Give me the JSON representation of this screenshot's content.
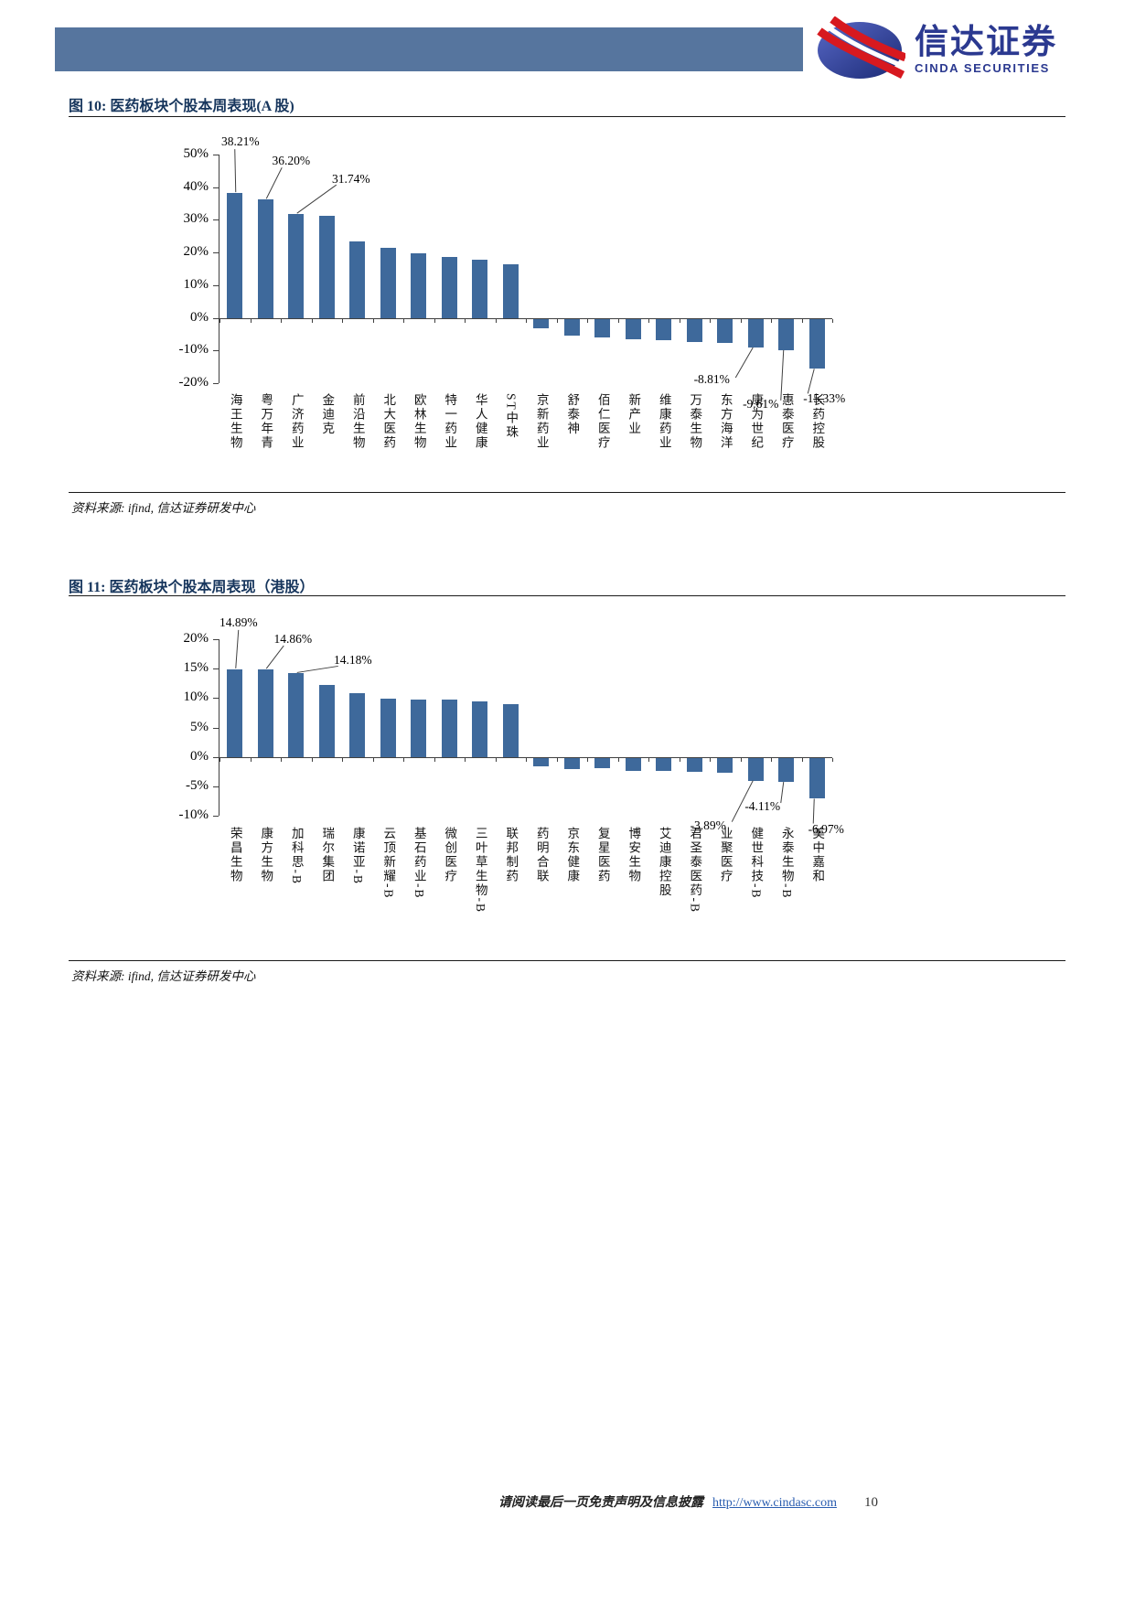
{
  "header": {
    "brand_cn": "信达证券",
    "brand_en": "CINDA SECURITIES"
  },
  "footer": {
    "disclaimer": "请阅读最后一页免责声明及信息披露",
    "url": "http://www.cindasc.com",
    "page": "10"
  },
  "chart_data": [
    {
      "type": "bar",
      "title": "图 10: 医药板块个股本周表现(A 股)",
      "source": "资料来源: ifind, 信达证券研发中心",
      "categories": [
        "海王生物",
        "粤万年青",
        "广济药业",
        "金迪克",
        "前沿生物",
        "北大医药",
        "欧林生物",
        "特一药业",
        "华人健康",
        "ST中珠",
        "京新药业",
        "舒泰神",
        "佰仁医疗",
        "新产业",
        "维康药业",
        "万泰生物",
        "东方海洋",
        "康为世纪",
        "惠泰医疗",
        "长药控股"
      ],
      "values": [
        38.21,
        36.2,
        31.74,
        31.2,
        23.3,
        21.5,
        19.8,
        18.6,
        17.8,
        16.5,
        -3.0,
        -5.3,
        -5.6,
        -6.2,
        -6.6,
        -7.0,
        -7.3,
        -8.81,
        -9.61,
        -15.33
      ],
      "data_labels": [
        {
          "index": 0,
          "text": "38.21%"
        },
        {
          "index": 1,
          "text": "36.20%"
        },
        {
          "index": 2,
          "text": "31.74%"
        },
        {
          "index": 17,
          "text": "-8.81%"
        },
        {
          "index": 18,
          "text": "-9.61%"
        },
        {
          "index": 19,
          "text": "-15.33%"
        }
      ],
      "ylim": [
        -20,
        50
      ],
      "ytick_step": 10,
      "ytick_format": "percent",
      "xlabel": "",
      "ylabel": "",
      "grid": false,
      "legend": false,
      "bar_color": "#3E699B"
    },
    {
      "type": "bar",
      "title": "图 11: 医药板块个股本周表现（港股）",
      "source": "资料来源: ifind, 信达证券研发中心",
      "categories": [
        "荣昌生物",
        "康方生物",
        "加科思-B",
        "瑞尔集团",
        "康诺亚-B",
        "云顶新耀-B",
        "基石药业-B",
        "微创医疗",
        "三叶草生物-B",
        "联邦制药",
        "药明合联",
        "京东健康",
        "复星医药",
        "博安生物",
        "艾迪康控股",
        "君圣泰医药-B",
        "业聚医疗",
        "健世科技-B",
        "永泰生物-B",
        "美中嘉和"
      ],
      "values": [
        14.89,
        14.86,
        14.18,
        12.3,
        10.8,
        9.9,
        9.7,
        9.7,
        9.4,
        8.9,
        -1.5,
        -1.9,
        -1.7,
        -2.3,
        -2.2,
        -2.4,
        -2.5,
        -3.89,
        -4.11,
        -6.97
      ],
      "data_labels": [
        {
          "index": 0,
          "text": "14.89%"
        },
        {
          "index": 1,
          "text": "14.86%"
        },
        {
          "index": 2,
          "text": "14.18%"
        },
        {
          "index": 17,
          "text": "-3.89%"
        },
        {
          "index": 18,
          "text": "-4.11%"
        },
        {
          "index": 19,
          "text": "-6.97%"
        }
      ],
      "ylim": [
        -10,
        20
      ],
      "ytick_step": 5,
      "ytick_format": "percent",
      "xlabel": "",
      "ylabel": "",
      "grid": false,
      "legend": false,
      "bar_color": "#3E699B"
    }
  ]
}
